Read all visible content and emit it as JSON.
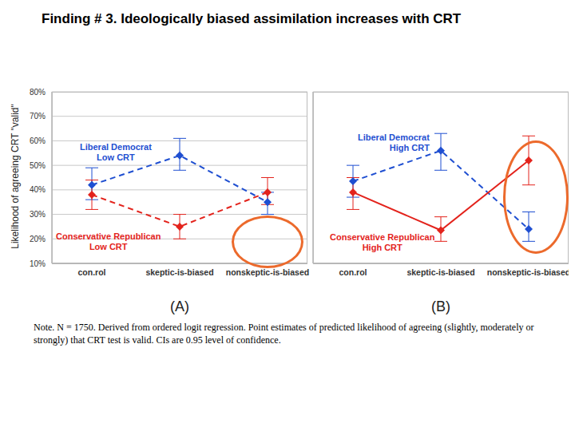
{
  "title": "Finding # 3. Ideologically biased assimilation increases with CRT",
  "note": "Note. N = 1750. Derived from ordered logit regression. Point estimates of predicted likelihood of agreeing (slightly, moderately or strongly) that CRT test is valid. CIs are 0.95 level of confidence.",
  "chart_data": [
    {
      "type": "line",
      "y_label": "Likelihood of agreeing CRT \"valid\"",
      "x_label": "(A)",
      "categories": [
        "con.rol",
        "skeptic-is-biased",
        "nonskeptic-is-biased"
      ],
      "ylim": [
        10,
        80
      ],
      "yticks": [
        {
          "value": 10,
          "label": "10%"
        },
        {
          "value": 20,
          "label": "20%"
        },
        {
          "value": 30,
          "label": "30%"
        },
        {
          "value": 40,
          "label": "40%"
        },
        {
          "value": 50,
          "label": "50%"
        },
        {
          "value": 60,
          "label": "60%"
        },
        {
          "value": 70,
          "label": "70%"
        },
        {
          "value": 80,
          "label": "80%"
        }
      ],
      "grid": true,
      "series": [
        {
          "name": "Liberal Democrat\nLow CRT",
          "color": "#1f4fd1",
          "line_style": "dashed",
          "marker": "diamond",
          "values": [
            42,
            54,
            35
          ],
          "ci_low": [
            36,
            48,
            30
          ],
          "ci_high": [
            49,
            61,
            39
          ]
        },
        {
          "name": "Conservative Republican\nLow CRT",
          "color": "#e3231c",
          "line_style": "dashed",
          "marker": "diamond",
          "values": [
            38,
            25,
            39
          ],
          "ci_low": [
            32,
            20,
            34
          ],
          "ci_high": [
            44,
            30,
            45
          ]
        }
      ]
    },
    {
      "type": "line",
      "x_label": "(B)",
      "categories": [
        "con.rol",
        "skeptic-is-biased",
        "nonskeptic-is-biased"
      ],
      "ylim": [
        10,
        80
      ],
      "yticks": [
        {
          "value": 10,
          "label": "10%"
        },
        {
          "value": 20,
          "label": "20%"
        },
        {
          "value": 30,
          "label": "30%"
        },
        {
          "value": 40,
          "label": "40%"
        },
        {
          "value": 50,
          "label": "50%"
        },
        {
          "value": 60,
          "label": "60%"
        },
        {
          "value": 70,
          "label": "70%"
        },
        {
          "value": 80,
          "label": "80%"
        }
      ],
      "grid": true,
      "tick_labels": "x",
      "series": [
        {
          "name": "Liberal Democrat\nHigh CRT",
          "color": "#1f4fd1",
          "line_style": "dashed",
          "marker": "diamond",
          "values": [
            43.5,
            56,
            24
          ],
          "ci_low": [
            37,
            48,
            19
          ],
          "ci_high": [
            50,
            63,
            31
          ]
        },
        {
          "name": "Conservative Republican\nHigh CRT",
          "color": "#e3231c",
          "line_style": "solid",
          "marker": "diamond",
          "values": [
            39,
            23.5,
            52
          ],
          "ci_low": [
            32,
            19,
            42
          ],
          "ci_high": [
            45,
            29,
            62
          ]
        }
      ]
    }
  ]
}
